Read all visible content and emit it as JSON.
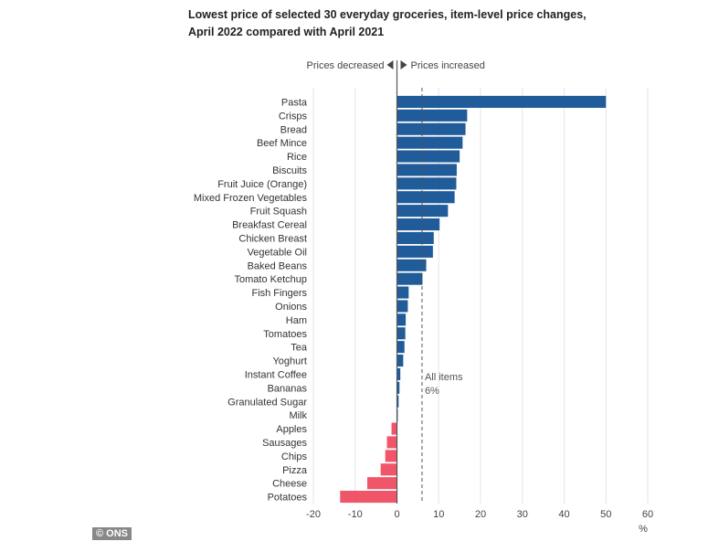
{
  "title": {
    "line1": "Lowest price of selected 30 everyday groceries, item-level price changes,",
    "line2": "April 2022 compared with April 2021"
  },
  "direction_labels": {
    "decreased": "Prices decreased",
    "increased": "Prices increased"
  },
  "reference_line": {
    "label_line1": "All items",
    "label_line2": "6%",
    "value": 6
  },
  "credit": "© ONS",
  "colors": {
    "increase": "#1f5c99",
    "decrease": "#f0566a",
    "grid": "#e3e6ee",
    "zero_line": "#555555",
    "reference": "#555555"
  },
  "chart_data": {
    "type": "bar",
    "orientation": "horizontal",
    "title": "Lowest price of selected 30 everyday groceries, item-level price changes, April 2022 compared with April 2021",
    "xlabel": "%",
    "xlim": [
      -20,
      60
    ],
    "xticks": [
      -20,
      -10,
      0,
      10,
      20,
      30,
      40,
      50,
      60
    ],
    "grid": true,
    "categories": [
      "Pasta",
      "Crisps",
      "Bread",
      "Beef Mince",
      "Rice",
      "Biscuits",
      "Fruit Juice (Orange)",
      "Mixed Frozen Vegetables",
      "Fruit Squash",
      "Breakfast Cereal",
      "Chicken Breast",
      "Vegetable Oil",
      "Baked Beans",
      "Tomato Ketchup",
      "Fish Fingers",
      "Onions",
      "Ham",
      "Tomatoes",
      "Tea",
      "Yoghurt",
      "Instant Coffee",
      "Bananas",
      "Granulated Sugar",
      "Milk",
      "Apples",
      "Sausages",
      "Chips",
      "Pizza",
      "Cheese",
      "Potatoes"
    ],
    "values": [
      50,
      16.8,
      16.4,
      15.7,
      15.0,
      14.3,
      14.2,
      13.8,
      12.2,
      10.2,
      8.8,
      8.6,
      7.0,
      6.1,
      2.8,
      2.6,
      2.1,
      2.0,
      1.8,
      1.5,
      0.8,
      0.6,
      0.4,
      0.2,
      -1.3,
      -2.4,
      -2.8,
      -3.9,
      -7.1,
      -13.6
    ]
  }
}
